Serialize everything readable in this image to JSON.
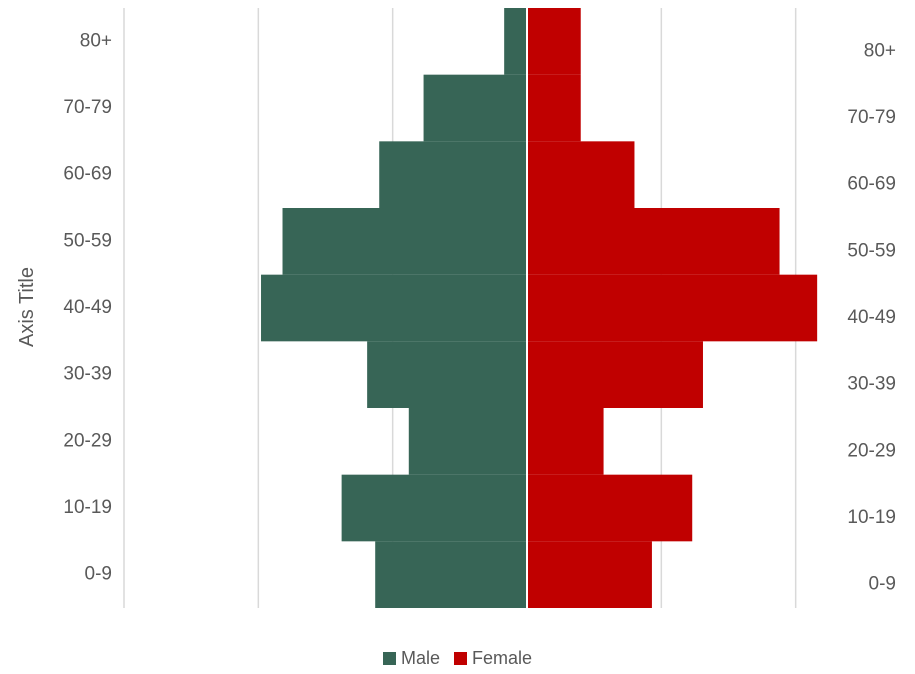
{
  "chart_data": {
    "type": "bar",
    "orientation": "horizontal",
    "subtype": "population-pyramid",
    "categories": [
      "0-9",
      "10-19",
      "20-29",
      "30-39",
      "40-49",
      "50-59",
      "60-69",
      "70-79",
      "80+"
    ],
    "series": [
      {
        "name": "Male",
        "color": "#376556",
        "values": [
          -11.3,
          -13.8,
          -8.8,
          -11.9,
          -19.8,
          -18.2,
          -11.0,
          -7.7,
          -1.7
        ]
      },
      {
        "name": "Female",
        "color": "#C00000",
        "values": [
          9.3,
          12.3,
          5.7,
          13.1,
          21.6,
          18.8,
          8.0,
          4.0,
          4.0
        ]
      }
    ],
    "xlim": [
      -30,
      30
    ],
    "ylabel": "Axis Title",
    "legend_position": "bottom",
    "grid": "vertical",
    "axis_color": "#d9d9d9"
  }
}
